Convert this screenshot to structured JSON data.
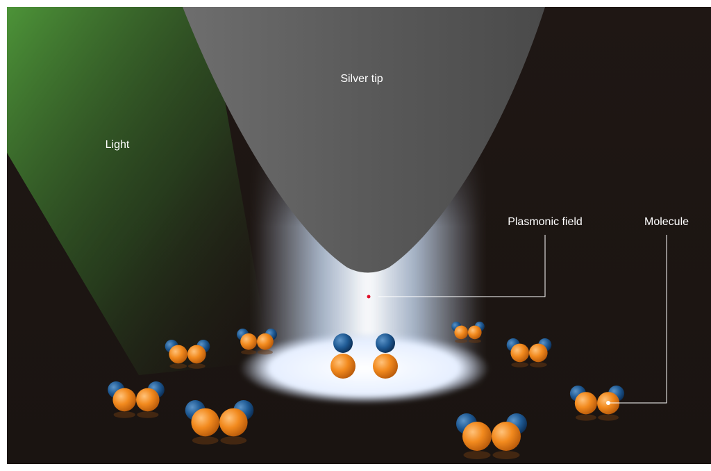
{
  "labels": {
    "silver_tip": "Silver tip",
    "light": "Light",
    "plasmonic_field": "Plasmonic field",
    "molecule": "Molecule"
  }
}
